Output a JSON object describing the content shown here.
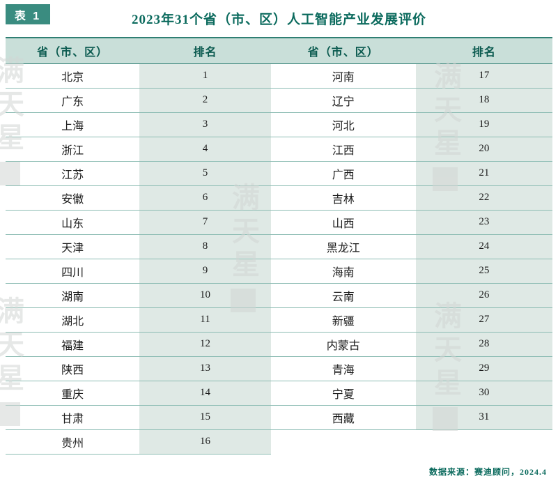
{
  "header": {
    "badge": "表 1",
    "title": "2023年31个省（市、区）人工智能产业发展评价"
  },
  "chart_data": {
    "type": "table",
    "title": "2023年31个省（市、区）人工智能产业发展评价",
    "columns": [
      "省（市、区）",
      "排名",
      "省（市、区）",
      "排名"
    ],
    "rows": [
      {
        "left_province": "北京",
        "left_rank": "1",
        "right_province": "河南",
        "right_rank": "17"
      },
      {
        "left_province": "广东",
        "left_rank": "2",
        "right_province": "辽宁",
        "right_rank": "18"
      },
      {
        "left_province": "上海",
        "left_rank": "3",
        "right_province": "河北",
        "right_rank": "19"
      },
      {
        "left_province": "浙江",
        "left_rank": "4",
        "right_province": "江西",
        "right_rank": "20"
      },
      {
        "left_province": "江苏",
        "left_rank": "5",
        "right_province": "广西",
        "right_rank": "21"
      },
      {
        "left_province": "安徽",
        "left_rank": "6",
        "right_province": "吉林",
        "right_rank": "22"
      },
      {
        "left_province": "山东",
        "left_rank": "7",
        "right_province": "山西",
        "right_rank": "23"
      },
      {
        "left_province": "天津",
        "left_rank": "8",
        "right_province": "黑龙江",
        "right_rank": "24"
      },
      {
        "left_province": "四川",
        "left_rank": "9",
        "right_province": "海南",
        "right_rank": "25"
      },
      {
        "left_province": "湖南",
        "left_rank": "10",
        "right_province": "云南",
        "right_rank": "26"
      },
      {
        "left_province": "湖北",
        "left_rank": "11",
        "right_province": "新疆",
        "right_rank": "27"
      },
      {
        "left_province": "福建",
        "left_rank": "12",
        "right_province": "内蒙古",
        "right_rank": "28"
      },
      {
        "left_province": "陕西",
        "left_rank": "13",
        "right_province": "青海",
        "right_rank": "29"
      },
      {
        "left_province": "重庆",
        "left_rank": "14",
        "right_province": "宁夏",
        "right_rank": "30"
      },
      {
        "left_province": "甘肃",
        "left_rank": "15",
        "right_province": "西藏",
        "right_rank": "31"
      },
      {
        "left_province": "贵州",
        "left_rank": "16",
        "right_province": "",
        "right_rank": ""
      }
    ]
  },
  "footer": {
    "source": "数据来源：赛迪顾问，2024.4"
  },
  "watermark": {
    "text": "满天星"
  },
  "colors": {
    "accent": "#0c6b5e",
    "badge_bg": "#3a8c80",
    "header_bg": "#c9dfd9",
    "rank_bg": "#dfe9e5",
    "line": "#8cbcb3",
    "line_strong": "#2f7f73",
    "footer": "#0c6b5e",
    "watermark": "#d2d6d4"
  }
}
